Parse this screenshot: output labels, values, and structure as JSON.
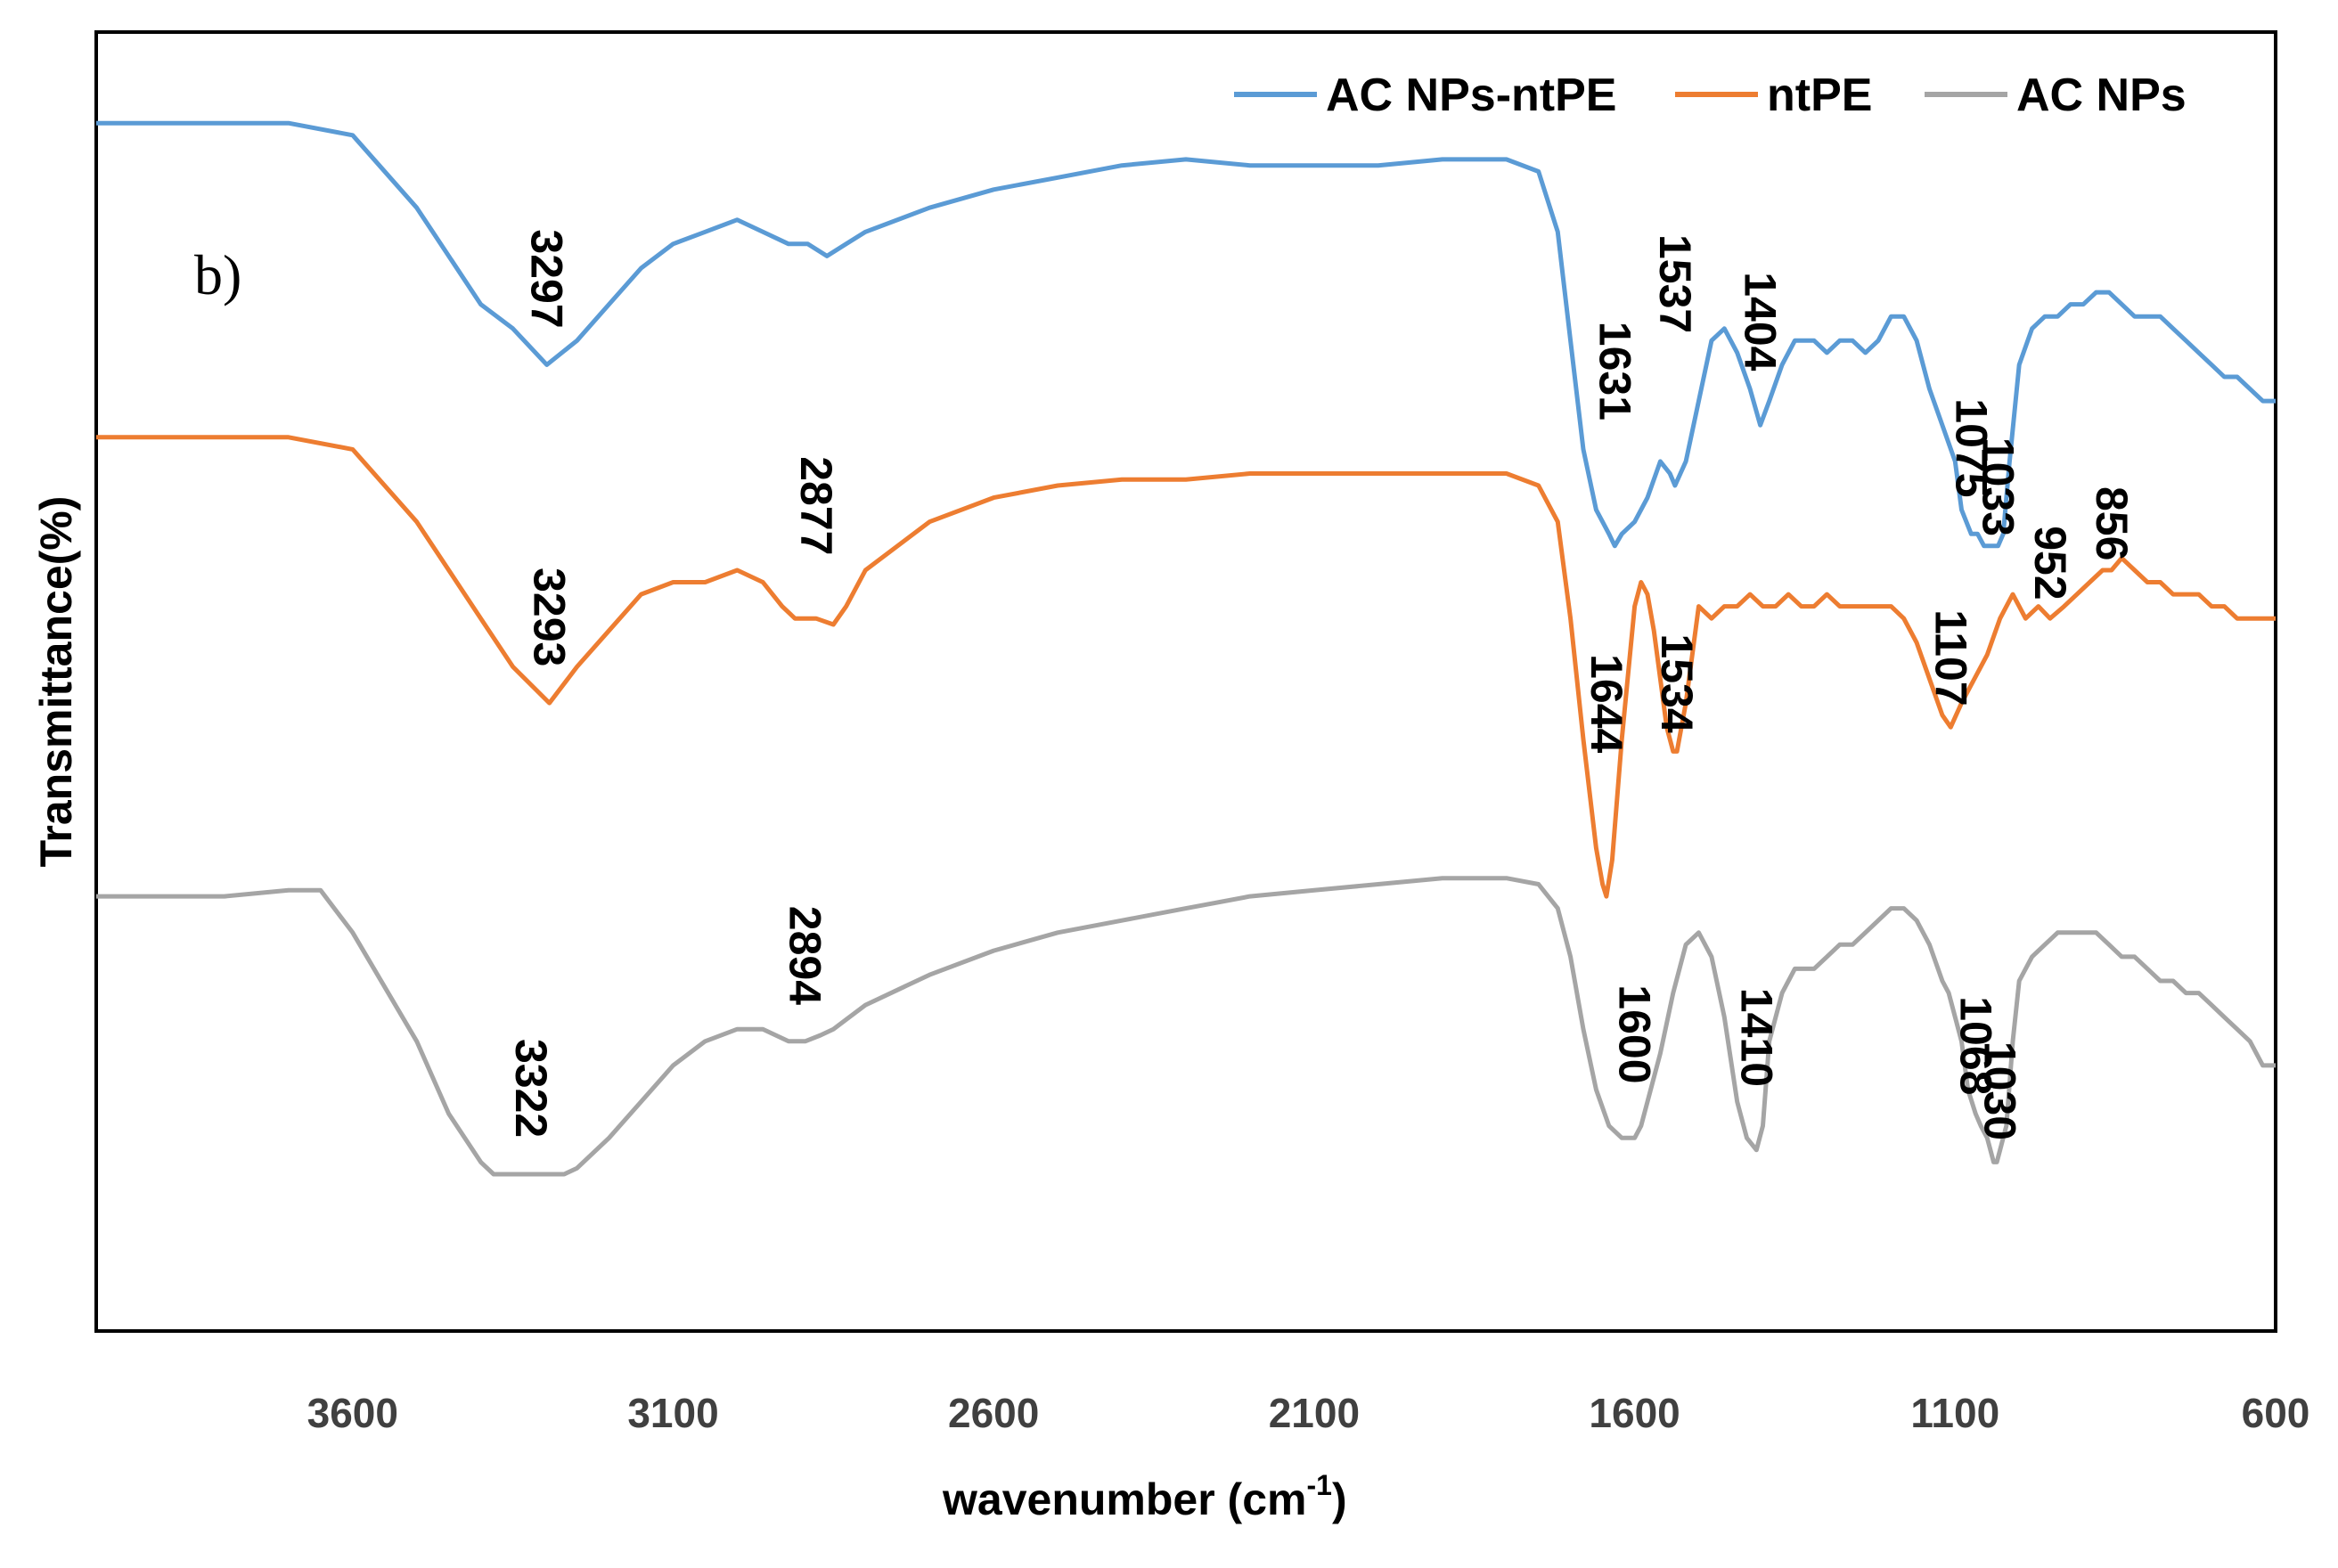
{
  "chart_data": {
    "type": "line",
    "panel_label": "b)",
    "title": "",
    "xlabel": "wavenumber (cm",
    "xlabel_sup": "-1",
    "xlabel_close": ")",
    "ylabel": "Transmittance(%)",
    "xlim": [
      4000,
      600
    ],
    "xticks": [
      "3600",
      "3100",
      "2600",
      "2100",
      "1600",
      "1100",
      "600"
    ],
    "ylim": [
      0,
      100
    ],
    "legend_position": "top-right",
    "series": [
      {
        "name": "AC NPs-ntPE",
        "color": "#5b9bd5",
        "x": [
          4000,
          3800,
          3700,
          3600,
          3500,
          3400,
          3350,
          3297,
          3250,
          3200,
          3150,
          3100,
          3050,
          3000,
          2960,
          2920,
          2890,
          2860,
          2830,
          2800,
          2700,
          2600,
          2500,
          2400,
          2300,
          2200,
          2100,
          2000,
          1900,
          1800,
          1750,
          1720,
          1700,
          1680,
          1660,
          1650,
          1640,
          1631,
          1620,
          1600,
          1580,
          1560,
          1545,
          1537,
          1520,
          1500,
          1480,
          1460,
          1440,
          1420,
          1404,
          1390,
          1370,
          1350,
          1320,
          1300,
          1280,
          1260,
          1240,
          1220,
          1200,
          1180,
          1160,
          1140,
          1120,
          1100,
          1090,
          1075,
          1065,
          1055,
          1045,
          1040,
          1033,
          1025,
          1015,
          1000,
          980,
          960,
          940,
          920,
          900,
          880,
          860,
          840,
          820,
          800,
          780,
          760,
          740,
          720,
          700,
          680,
          660,
          640,
          620,
          600
        ],
        "values": [
          96,
          96,
          96,
          95,
          89,
          81,
          79,
          76,
          78,
          81,
          84,
          86,
          87,
          88,
          87,
          86,
          86,
          85,
          86,
          87,
          89,
          90.5,
          91.5,
          92.5,
          93,
          92.5,
          92.5,
          92.5,
          93,
          93,
          92,
          87,
          78,
          69,
          64,
          63,
          62,
          61,
          62,
          63,
          65,
          68,
          67,
          66,
          68,
          73,
          78,
          79,
          77,
          74,
          71,
          73,
          76,
          78,
          78,
          77,
          78,
          78,
          77,
          78,
          80,
          80,
          78,
          74,
          71,
          68,
          64,
          62,
          62,
          61,
          61,
          61,
          61,
          62,
          68,
          76,
          79,
          80,
          80,
          81,
          81,
          82,
          82,
          81,
          80,
          80,
          80,
          79,
          78,
          77,
          76,
          75,
          75,
          74,
          73,
          73
        ]
      },
      {
        "name": "ntPE",
        "color": "#ed7d31",
        "x": [
          4000,
          3800,
          3700,
          3600,
          3500,
          3400,
          3350,
          3293,
          3250,
          3200,
          3150,
          3100,
          3050,
          3000,
          2960,
          2930,
          2910,
          2877,
          2850,
          2830,
          2800,
          2700,
          2600,
          2500,
          2400,
          2300,
          2200,
          2100,
          2000,
          1900,
          1800,
          1750,
          1720,
          1700,
          1680,
          1660,
          1650,
          1644,
          1635,
          1620,
          1600,
          1590,
          1580,
          1570,
          1560,
          1550,
          1540,
          1534,
          1520,
          1500,
          1480,
          1460,
          1440,
          1420,
          1400,
          1380,
          1360,
          1340,
          1320,
          1300,
          1280,
          1260,
          1240,
          1220,
          1200,
          1180,
          1160,
          1140,
          1120,
          1107,
          1090,
          1070,
          1050,
          1030,
          1010,
          990,
          970,
          952,
          930,
          910,
          890,
          870,
          856,
          840,
          820,
          800,
          780,
          760,
          740,
          720,
          700,
          680,
          660,
          640,
          620,
          600
        ],
        "values": [
          70,
          70,
          70,
          69,
          63,
          55,
          51,
          48,
          51,
          54,
          57,
          58,
          58,
          59,
          58,
          56,
          55,
          55,
          54.5,
          56,
          59,
          63,
          65,
          66,
          66.5,
          66.5,
          67,
          67,
          67,
          67,
          67,
          66,
          63,
          55,
          45,
          36,
          33,
          32,
          35,
          45,
          56,
          58,
          57,
          54,
          50,
          46,
          44,
          44,
          48,
          56,
          55,
          56,
          56,
          57,
          56,
          56,
          57,
          56,
          56,
          57,
          56,
          56,
          56,
          56,
          56,
          55,
          53,
          50,
          47,
          46,
          48,
          50,
          52,
          55,
          57,
          55,
          56,
          55,
          56,
          57,
          58,
          59,
          59,
          60,
          59,
          58,
          58,
          57,
          57,
          57,
          56,
          56,
          55,
          55,
          55,
          55
        ]
      },
      {
        "name": "AC NPs",
        "color": "#a5a5a5",
        "x": [
          4000,
          3800,
          3700,
          3650,
          3600,
          3500,
          3450,
          3400,
          3380,
          3322,
          3300,
          3270,
          3250,
          3200,
          3150,
          3100,
          3050,
          3000,
          2960,
          2920,
          2894,
          2870,
          2850,
          2800,
          2700,
          2600,
          2500,
          2400,
          2300,
          2200,
          2100,
          2000,
          1900,
          1800,
          1750,
          1720,
          1700,
          1680,
          1660,
          1640,
          1620,
          1600,
          1590,
          1580,
          1560,
          1540,
          1520,
          1500,
          1480,
          1460,
          1440,
          1425,
          1410,
          1400,
          1390,
          1370,
          1350,
          1320,
          1300,
          1280,
          1260,
          1240,
          1220,
          1200,
          1180,
          1160,
          1140,
          1120,
          1110,
          1100,
          1090,
          1080,
          1068,
          1060,
          1050,
          1045,
          1040,
          1035,
          1030,
          1020,
          1010,
          1000,
          980,
          960,
          940,
          920,
          900,
          880,
          860,
          840,
          820,
          800,
          780,
          760,
          740,
          720,
          700,
          680,
          660,
          640,
          620,
          600
        ],
        "values": [
          32,
          32,
          32.5,
          32.5,
          29,
          20,
          14,
          10,
          9,
          9,
          9,
          9,
          9.5,
          12,
          15,
          18,
          20,
          21,
          21,
          20,
          20,
          20.5,
          21,
          23,
          25.5,
          27.5,
          29,
          30,
          31,
          32,
          32.5,
          33,
          33.5,
          33.5,
          33,
          31,
          27,
          21,
          16,
          13,
          12,
          12,
          13,
          15,
          19,
          24,
          28,
          29,
          27,
          22,
          15,
          12,
          11,
          13,
          20,
          24,
          26,
          26,
          27,
          28,
          28,
          29,
          30,
          31,
          31,
          30,
          28,
          25,
          24,
          22,
          20,
          16,
          14,
          13,
          12,
          11,
          10,
          10,
          11,
          13,
          20,
          25,
          27,
          28,
          29,
          29,
          29,
          29,
          28,
          27,
          27,
          26,
          25,
          25,
          24,
          24,
          23,
          22,
          21,
          20,
          18,
          18
        ]
      }
    ],
    "annotations": [
      {
        "text": "3297",
        "series": 0
      },
      {
        "text": "1631",
        "series": 0
      },
      {
        "text": "1537",
        "series": 0
      },
      {
        "text": "1404",
        "series": 0
      },
      {
        "text": "1075",
        "series": 0
      },
      {
        "text": "1033",
        "series": 0
      },
      {
        "text": "3293",
        "series": 1
      },
      {
        "text": "2877",
        "series": 1
      },
      {
        "text": "1644",
        "series": 1
      },
      {
        "text": "1534",
        "series": 1
      },
      {
        "text": "1107",
        "series": 1
      },
      {
        "text": "952",
        "series": 1
      },
      {
        "text": "856",
        "series": 1
      },
      {
        "text": "3322",
        "series": 2
      },
      {
        "text": "2894",
        "series": 2
      },
      {
        "text": "1600",
        "series": 2
      },
      {
        "text": "1410",
        "series": 2
      },
      {
        "text": "1068",
        "series": 2
      },
      {
        "text": "1030",
        "series": 2
      }
    ]
  }
}
